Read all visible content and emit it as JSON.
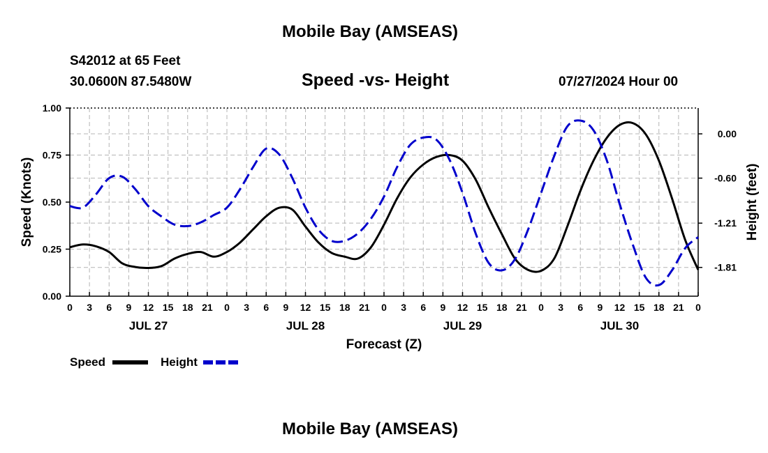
{
  "header": {
    "title": "Mobile Bay (AMSEAS)",
    "station": "S42012 at 65 Feet",
    "coords": "30.0600N  87.5480W",
    "subtitle": "Speed -vs- Height",
    "forecast_time": "07/27/2024 Hour 00"
  },
  "footer": {
    "title": "Mobile Bay (AMSEAS)"
  },
  "colors": {
    "speed": "#000000",
    "height": "#0000cc",
    "grid": "#b4b4b4"
  },
  "chart_data": {
    "type": "line",
    "title": "Speed -vs- Height",
    "xlabel": "Forecast (Z)",
    "ylabel": "Speed (Knots)",
    "y2label": "Height (feet)",
    "x_range": [
      0,
      96
    ],
    "ylim": [
      0,
      1.0
    ],
    "y2lim": [
      -2.2,
      0.35
    ],
    "y_ticks": [
      {
        "value": 0.0,
        "label": "0.00"
      },
      {
        "value": 0.25,
        "label": "0.25"
      },
      {
        "value": 0.5,
        "label": "0.50"
      },
      {
        "value": 0.75,
        "label": "0.75"
      },
      {
        "value": 1.0,
        "label": "1.00"
      }
    ],
    "y2_ticks": [
      {
        "value": 0.0,
        "label": "0.00"
      },
      {
        "value": -0.6,
        "label": "-0.60"
      },
      {
        "value": -1.21,
        "label": "-1.21"
      },
      {
        "value": -1.81,
        "label": "-1.81"
      }
    ],
    "x_tick_labels": [
      "0",
      "3",
      "6",
      "9",
      "12",
      "15",
      "18",
      "21",
      "0",
      "3",
      "6",
      "9",
      "12",
      "15",
      "18",
      "21",
      "0",
      "3",
      "6",
      "9",
      "12",
      "15",
      "18",
      "21",
      "0",
      "3",
      "6",
      "9",
      "12",
      "15",
      "18",
      "21",
      "0"
    ],
    "day_labels": [
      {
        "hour": 12,
        "label": "JUL 27"
      },
      {
        "hour": 36,
        "label": "JUL 28"
      },
      {
        "hour": 60,
        "label": "JUL 29"
      },
      {
        "hour": 84,
        "label": "JUL 30"
      }
    ],
    "legend": [
      {
        "name": "Speed",
        "style": "solid"
      },
      {
        "name": "Height",
        "style": "dashed"
      }
    ],
    "series": [
      {
        "name": "Speed",
        "axis": "left",
        "x": [
          0,
          2,
          4,
          6,
          8,
          10,
          12,
          14,
          16,
          18,
          20,
          22,
          24,
          26,
          28,
          30,
          32,
          34,
          36,
          38,
          40,
          42,
          44,
          46,
          48,
          50,
          52,
          54,
          56,
          58,
          60,
          62,
          64,
          66,
          68,
          70,
          72,
          74,
          76,
          78,
          80,
          82,
          84,
          86,
          88,
          90,
          92,
          94,
          96
        ],
        "values": [
          0.26,
          0.275,
          0.265,
          0.235,
          0.175,
          0.155,
          0.15,
          0.16,
          0.2,
          0.225,
          0.235,
          0.21,
          0.235,
          0.285,
          0.355,
          0.425,
          0.47,
          0.46,
          0.37,
          0.285,
          0.23,
          0.21,
          0.2,
          0.26,
          0.38,
          0.52,
          0.63,
          0.7,
          0.74,
          0.75,
          0.72,
          0.62,
          0.47,
          0.33,
          0.2,
          0.14,
          0.135,
          0.2,
          0.37,
          0.56,
          0.72,
          0.84,
          0.91,
          0.92,
          0.86,
          0.72,
          0.52,
          0.3,
          0.14
        ]
      },
      {
        "name": "Height",
        "axis": "right",
        "x": [
          0,
          2,
          4,
          6,
          8,
          10,
          12,
          14,
          16,
          18,
          20,
          22,
          24,
          26,
          28,
          30,
          32,
          34,
          36,
          38,
          40,
          42,
          44,
          46,
          48,
          50,
          52,
          54,
          56,
          58,
          60,
          62,
          64,
          66,
          68,
          70,
          72,
          74,
          76,
          78,
          80,
          82,
          84,
          86,
          88,
          90,
          92,
          94,
          96
        ],
        "values": [
          -0.98,
          -1.0,
          -0.82,
          -0.6,
          -0.58,
          -0.75,
          -0.98,
          -1.12,
          -1.23,
          -1.25,
          -1.2,
          -1.1,
          -1.0,
          -0.75,
          -0.45,
          -0.2,
          -0.28,
          -0.6,
          -1.0,
          -1.3,
          -1.45,
          -1.45,
          -1.35,
          -1.15,
          -0.85,
          -0.45,
          -0.15,
          -0.05,
          -0.08,
          -0.35,
          -0.8,
          -1.35,
          -1.75,
          -1.85,
          -1.7,
          -1.3,
          -0.8,
          -0.3,
          0.1,
          0.18,
          0.05,
          -0.35,
          -0.95,
          -1.5,
          -1.95,
          -2.05,
          -1.85,
          -1.55,
          -1.4
        ]
      }
    ]
  }
}
